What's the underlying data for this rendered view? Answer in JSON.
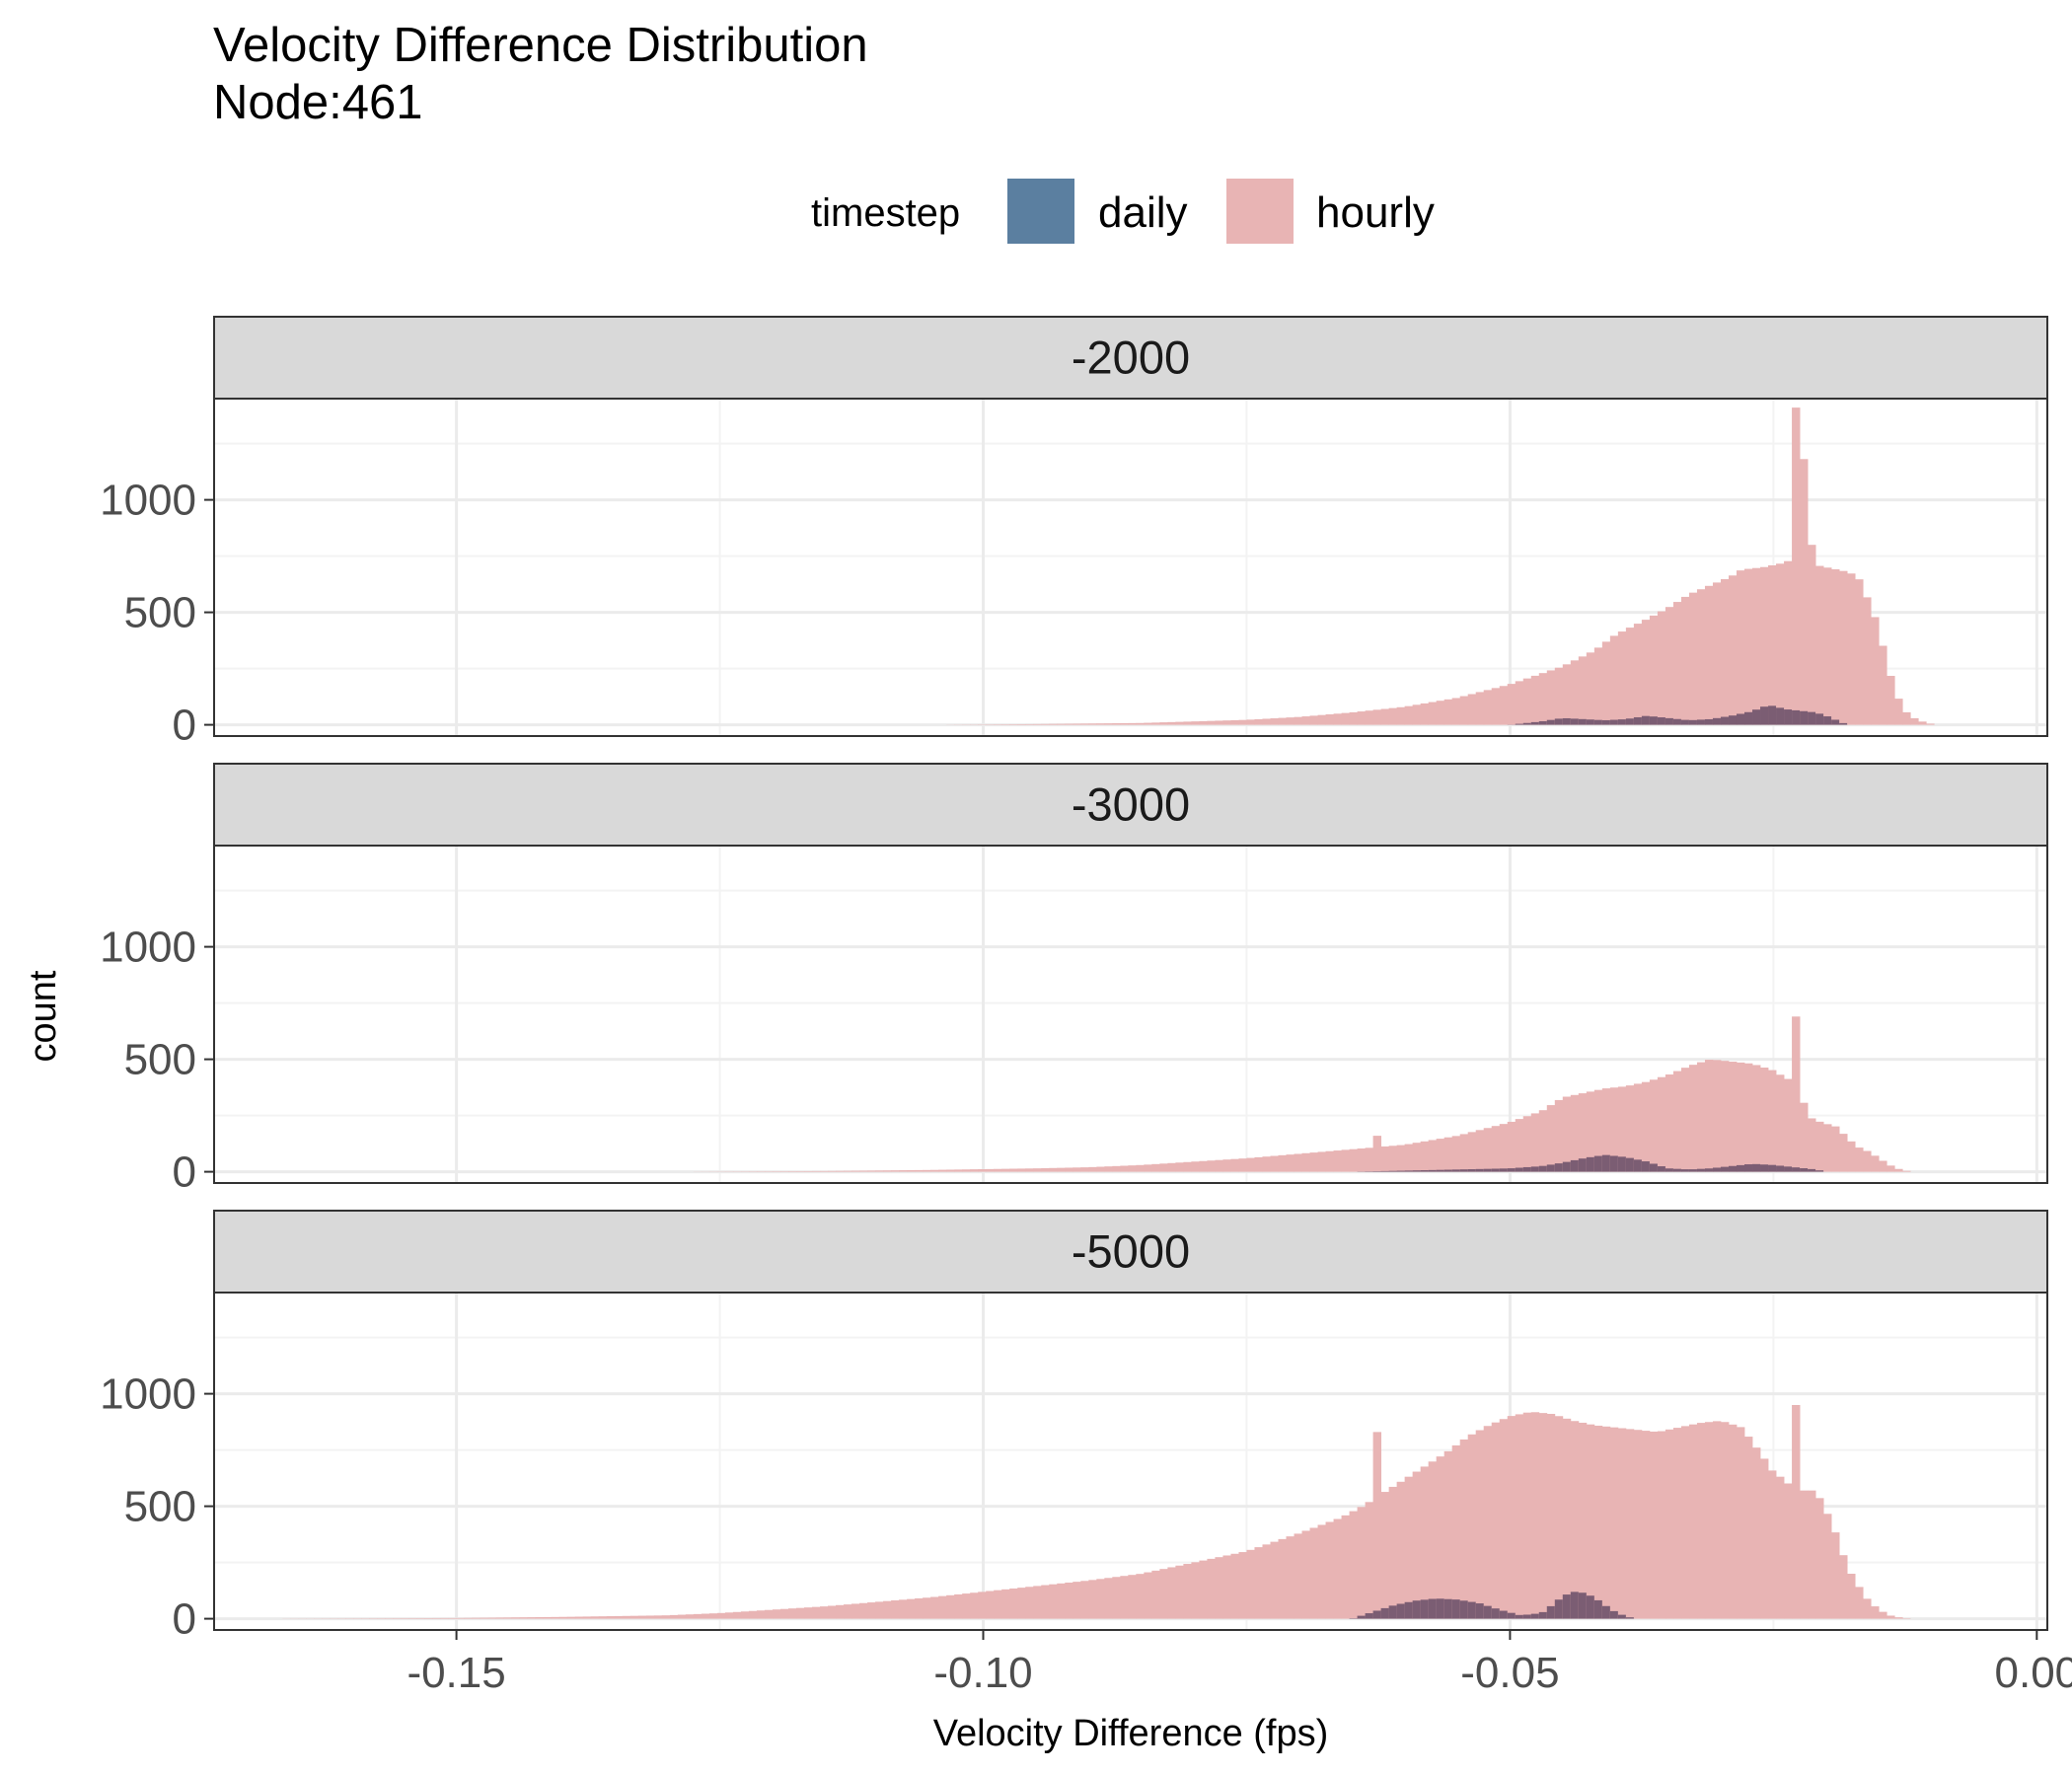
{
  "chart_data": {
    "type": "histogram",
    "title": "Velocity Difference Distribution",
    "subtitle": "Node:461",
    "xlabel": "Velocity Difference (fps)",
    "ylabel": "count",
    "xlim": [
      -0.173,
      0.001
    ],
    "ylim": [
      -50,
      1450
    ],
    "x_ticks": [
      -0.15,
      -0.1,
      -0.05,
      0.0
    ],
    "x_tick_labels": [
      "-0.15",
      "-0.10",
      "-0.05",
      "0.00"
    ],
    "y_ticks": [
      0,
      500,
      1000
    ],
    "y_tick_labels": [
      "0",
      "500",
      "1000"
    ],
    "bin_width": 0.00075,
    "grid": true,
    "legend": {
      "title": "timestep",
      "position": "top",
      "items": [
        {
          "label": "daily",
          "color": "#5b7fa0"
        },
        {
          "label": "hourly",
          "color": "#e8b4b4"
        }
      ]
    },
    "colors": {
      "daily": "#5b7fa0",
      "hourly": "#e8b4b4",
      "overlap": "#7b5d73",
      "strip_bg": "#d9d9d9",
      "grid": "#ebebeb"
    },
    "facets": [
      {
        "label": "-2000",
        "series": [
          {
            "name": "hourly",
            "points": [
              [
                -0.105,
                0
              ],
              [
                -0.095,
                3
              ],
              [
                -0.085,
                8
              ],
              [
                -0.08,
                15
              ],
              [
                -0.075,
                22
              ],
              [
                -0.07,
                35
              ],
              [
                -0.065,
                55
              ],
              [
                -0.06,
                80
              ],
              [
                -0.055,
                120
              ],
              [
                -0.05,
                180
              ],
              [
                -0.045,
                260
              ],
              [
                -0.042,
                330
              ],
              [
                -0.04,
                400
              ],
              [
                -0.037,
                470
              ],
              [
                -0.035,
                520
              ],
              [
                -0.033,
                580
              ],
              [
                -0.031,
                620
              ],
              [
                -0.029,
                660
              ],
              [
                -0.028,
                690
              ],
              [
                -0.026,
                700
              ],
              [
                -0.025,
                710
              ],
              [
                -0.024,
                720
              ],
              [
                -0.023,
                740
              ],
              [
                -0.0225,
                1410
              ],
              [
                -0.0215,
                800
              ],
              [
                -0.021,
                710
              ],
              [
                -0.019,
                690
              ],
              [
                -0.018,
                680
              ],
              [
                -0.017,
                660
              ],
              [
                -0.0155,
                500
              ],
              [
                -0.0145,
                330
              ],
              [
                -0.0135,
                150
              ],
              [
                -0.0125,
                60
              ],
              [
                -0.0115,
                25
              ],
              [
                -0.0105,
                8
              ],
              [
                -0.0095,
                0
              ]
            ],
            "spikes": [
              [
                -0.0225,
                1410
              ],
              [
                -0.0215,
                800
              ]
            ]
          },
          {
            "name": "daily",
            "points": [
              [
                -0.05,
                0
              ],
              [
                -0.047,
                15
              ],
              [
                -0.045,
                30
              ],
              [
                -0.043,
                25
              ],
              [
                -0.041,
                20
              ],
              [
                -0.039,
                25
              ],
              [
                -0.037,
                40
              ],
              [
                -0.035,
                30
              ],
              [
                -0.033,
                20
              ],
              [
                -0.031,
                25
              ],
              [
                -0.029,
                40
              ],
              [
                -0.027,
                60
              ],
              [
                -0.026,
                80
              ],
              [
                -0.025,
                85
              ],
              [
                -0.024,
                70
              ],
              [
                -0.023,
                65
              ],
              [
                -0.022,
                60
              ],
              [
                -0.021,
                55
              ],
              [
                -0.02,
                40
              ],
              [
                -0.019,
                20
              ],
              [
                -0.018,
                0
              ]
            ]
          }
        ]
      },
      {
        "label": "-3000",
        "series": [
          {
            "name": "hourly",
            "points": [
              [
                -0.13,
                0
              ],
              [
                -0.115,
                3
              ],
              [
                -0.105,
                8
              ],
              [
                -0.095,
                15
              ],
              [
                -0.09,
                20
              ],
              [
                -0.085,
                30
              ],
              [
                -0.08,
                45
              ],
              [
                -0.075,
                60
              ],
              [
                -0.07,
                80
              ],
              [
                -0.065,
                100
              ],
              [
                -0.06,
                120
              ],
              [
                -0.055,
                160
              ],
              [
                -0.05,
                220
              ],
              [
                -0.047,
                270
              ],
              [
                -0.045,
                330
              ],
              [
                -0.043,
                350
              ],
              [
                -0.041,
                370
              ],
              [
                -0.039,
                380
              ],
              [
                -0.037,
                400
              ],
              [
                -0.035,
                430
              ],
              [
                -0.033,
                470
              ],
              [
                -0.031,
                500
              ],
              [
                -0.029,
                490
              ],
              [
                -0.027,
                480
              ],
              [
                -0.025,
                450
              ],
              [
                -0.024,
                420
              ],
              [
                -0.023,
                400
              ],
              [
                -0.0215,
                240
              ],
              [
                -0.0205,
                220
              ],
              [
                -0.019,
                200
              ],
              [
                -0.018,
                150
              ],
              [
                -0.017,
                110
              ],
              [
                -0.016,
                90
              ],
              [
                -0.015,
                60
              ],
              [
                -0.014,
                30
              ],
              [
                -0.013,
                10
              ],
              [
                -0.012,
                0
              ]
            ],
            "spikes": [
              [
                -0.0625,
                160
              ],
              [
                -0.0225,
                690
              ]
            ]
          },
          {
            "name": "daily",
            "points": [
              [
                -0.065,
                0
              ],
              [
                -0.06,
                5
              ],
              [
                -0.055,
                10
              ],
              [
                -0.05,
                15
              ],
              [
                -0.047,
                25
              ],
              [
                -0.045,
                40
              ],
              [
                -0.043,
                60
              ],
              [
                -0.041,
                75
              ],
              [
                -0.039,
                65
              ],
              [
                -0.037,
                45
              ],
              [
                -0.035,
                15
              ],
              [
                -0.033,
                10
              ],
              [
                -0.031,
                15
              ],
              [
                -0.029,
                25
              ],
              [
                -0.027,
                35
              ],
              [
                -0.025,
                30
              ],
              [
                -0.023,
                20
              ],
              [
                -0.021,
                10
              ],
              [
                -0.02,
                0
              ]
            ]
          }
        ]
      },
      {
        "label": "-5000",
        "series": [
          {
            "name": "hourly",
            "points": [
              [
                -0.17,
                0
              ],
              [
                -0.15,
                3
              ],
              [
                -0.14,
                8
              ],
              [
                -0.13,
                15
              ],
              [
                -0.125,
                25
              ],
              [
                -0.12,
                40
              ],
              [
                -0.115,
                55
              ],
              [
                -0.11,
                75
              ],
              [
                -0.105,
                95
              ],
              [
                -0.1,
                120
              ],
              [
                -0.095,
                145
              ],
              [
                -0.09,
                170
              ],
              [
                -0.085,
                200
              ],
              [
                -0.08,
                250
              ],
              [
                -0.075,
                300
              ],
              [
                -0.07,
                380
              ],
              [
                -0.066,
                450
              ],
              [
                -0.064,
                500
              ],
              [
                -0.062,
                560
              ],
              [
                -0.06,
                620
              ],
              [
                -0.058,
                680
              ],
              [
                -0.056,
                740
              ],
              [
                -0.054,
                810
              ],
              [
                -0.052,
                860
              ],
              [
                -0.05,
                900
              ],
              [
                -0.048,
                920
              ],
              [
                -0.046,
                910
              ],
              [
                -0.044,
                880
              ],
              [
                -0.042,
                860
              ],
              [
                -0.04,
                850
              ],
              [
                -0.038,
                840
              ],
              [
                -0.036,
                830
              ],
              [
                -0.034,
                850
              ],
              [
                -0.032,
                870
              ],
              [
                -0.03,
                880
              ],
              [
                -0.028,
                850
              ],
              [
                -0.026,
                720
              ],
              [
                -0.025,
                650
              ],
              [
                -0.024,
                620
              ],
              [
                -0.023,
                570
              ],
              [
                -0.021,
                570
              ],
              [
                -0.02,
                480
              ],
              [
                -0.019,
                370
              ],
              [
                -0.018,
                230
              ],
              [
                -0.017,
                150
              ],
              [
                -0.016,
                80
              ],
              [
                -0.015,
                40
              ],
              [
                -0.014,
                15
              ],
              [
                -0.013,
                5
              ],
              [
                -0.012,
                0
              ]
            ],
            "spikes": [
              [
                -0.0625,
                830
              ],
              [
                -0.0225,
                950
              ]
            ]
          },
          {
            "name": "daily",
            "points": [
              [
                -0.065,
                0
              ],
              [
                -0.063,
                30
              ],
              [
                -0.061,
                60
              ],
              [
                -0.059,
                80
              ],
              [
                -0.057,
                90
              ],
              [
                -0.055,
                85
              ],
              [
                -0.053,
                70
              ],
              [
                -0.051,
                40
              ],
              [
                -0.049,
                15
              ],
              [
                -0.047,
                25
              ],
              [
                -0.046,
                60
              ],
              [
                -0.045,
                100
              ],
              [
                -0.044,
                120
              ],
              [
                -0.043,
                115
              ],
              [
                -0.042,
                95
              ],
              [
                -0.041,
                60
              ],
              [
                -0.04,
                30
              ],
              [
                -0.039,
                10
              ],
              [
                -0.038,
                0
              ]
            ]
          }
        ]
      }
    ]
  }
}
